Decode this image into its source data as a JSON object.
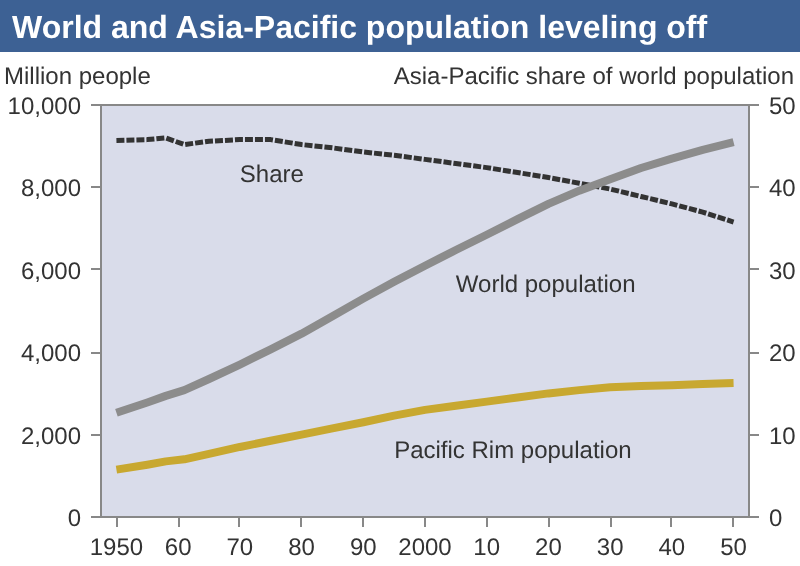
{
  "chart_data": {
    "type": "line",
    "title": "World and Asia-Pacific population leveling off",
    "ylabel": "Million people",
    "y2label": "Asia-Pacific share of world population",
    "x": [
      1950,
      1955,
      1958,
      1961,
      1965,
      1970,
      1975,
      1980,
      1985,
      1990,
      1995,
      2000,
      2005,
      2010,
      2015,
      2020,
      2025,
      2030,
      2035,
      2040,
      2045,
      2050
    ],
    "series": [
      {
        "name": "Share",
        "color": "#333333",
        "axis": "y2",
        "line_style": "dashed",
        "values": [
          45.7,
          45.8,
          46.0,
          45.2,
          45.6,
          45.8,
          45.8,
          45.2,
          44.8,
          44.3,
          43.9,
          43.4,
          42.9,
          42.4,
          41.8,
          41.2,
          40.5,
          39.8,
          38.9,
          38.0,
          37.0,
          35.8
        ]
      },
      {
        "name": "World population",
        "color": "#8c8c8c",
        "values": [
          2530,
          2780,
          2940,
          3080,
          3350,
          3700,
          4070,
          4450,
          4870,
          5300,
          5710,
          6100,
          6480,
          6850,
          7230,
          7600,
          7920,
          8200,
          8470,
          8700,
          8910,
          9100
        ]
      },
      {
        "name": "Pacific Rim population",
        "color": "#c8a830",
        "values": [
          1150,
          1270,
          1350,
          1400,
          1530,
          1700,
          1850,
          2000,
          2150,
          2300,
          2460,
          2600,
          2700,
          2800,
          2900,
          3000,
          3080,
          3150,
          3180,
          3200,
          3230,
          3250
        ]
      }
    ],
    "xlim": [
      1947.5,
      2052.5
    ],
    "xticks": [
      {
        "value": 1950,
        "label": "1950"
      },
      {
        "value": 1960,
        "label": "60"
      },
      {
        "value": 1970,
        "label": "70"
      },
      {
        "value": 1980,
        "label": "80"
      },
      {
        "value": 1990,
        "label": "90"
      },
      {
        "value": 2000,
        "label": "2000"
      },
      {
        "value": 2010,
        "label": "10"
      },
      {
        "value": 2020,
        "label": "20"
      },
      {
        "value": 2030,
        "label": "30"
      },
      {
        "value": 2040,
        "label": "40"
      },
      {
        "value": 2050,
        "label": "50"
      }
    ],
    "ylim": [
      0,
      10000
    ],
    "yticks": [
      0,
      {
        "value": 2000,
        "label": "2,000"
      },
      {
        "value": 4000,
        "label": "4,000"
      },
      {
        "value": 6000,
        "label": "6,000"
      },
      {
        "value": 8000,
        "label": "8,000"
      },
      {
        "value": 10000,
        "label": "10,000"
      }
    ],
    "y2lim": [
      0,
      50
    ],
    "y2ticks": [
      0,
      10,
      20,
      30,
      40,
      50
    ],
    "grid": false
  }
}
